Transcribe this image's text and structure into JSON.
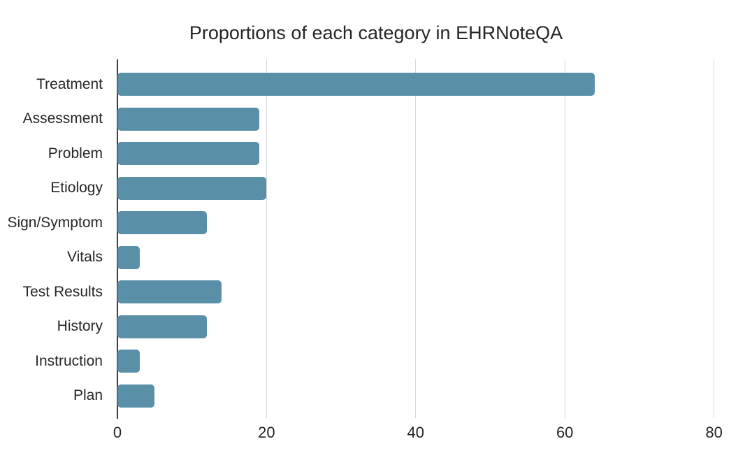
{
  "title": "Proportions of each category in EHRNoteQA",
  "chart_data": {
    "type": "bar",
    "orientation": "horizontal",
    "title": "Proportions of each category in EHRNoteQA",
    "categories": [
      "Treatment",
      "Assessment",
      "Problem",
      "Etiology",
      "Sign/Symptom",
      "Vitals",
      "Test Results",
      "History",
      "Instruction",
      "Plan"
    ],
    "values": [
      64,
      19,
      19,
      20,
      12,
      3,
      14,
      12,
      3,
      5
    ],
    "xlabel": "",
    "ylabel": "",
    "xticks": [
      0,
      20,
      40,
      60,
      80
    ],
    "xlim": [
      0,
      83.6
    ],
    "grid": "vertical-gridlines-on",
    "legend": "none",
    "colors": {
      "bar": "#5a8fa8",
      "axis_line": "#3f3f3f",
      "gridline": "#d8d8d8",
      "text": "#262626"
    }
  }
}
